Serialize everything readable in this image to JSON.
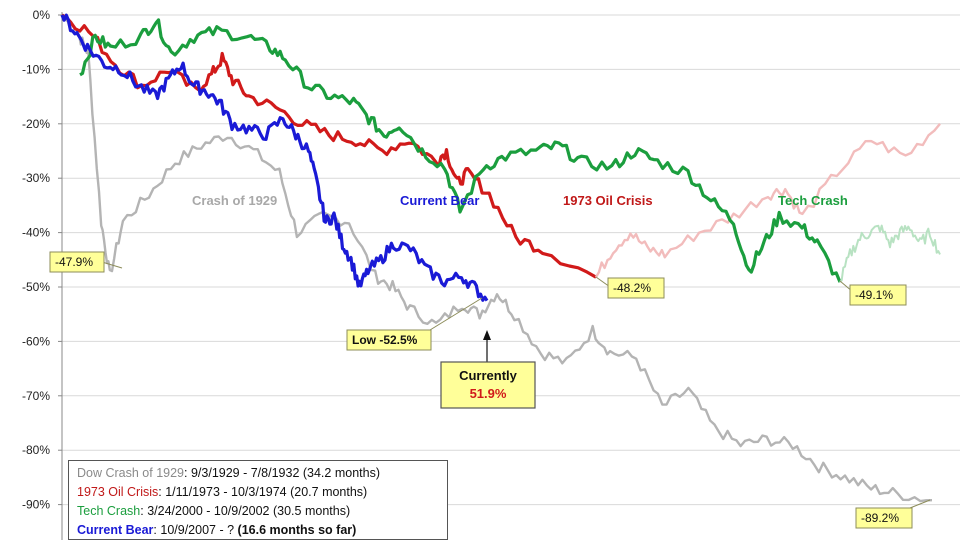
{
  "chart_data": {
    "type": "line",
    "title": "",
    "xlabel": "",
    "ylabel": "",
    "ylim": [
      -90,
      0
    ],
    "y_tick_labels": [
      "0%",
      "-10%",
      "-20%",
      "-30%",
      "-40%",
      "-50%",
      "-60%",
      "-70%",
      "-80%",
      "-90%"
    ],
    "grid": "horizontal",
    "series": [
      {
        "name": "Crash of 1929",
        "color": "#b4b4b4",
        "points": [
          [
            0,
            0
          ],
          [
            0.02,
            -4
          ],
          [
            0.03,
            -7
          ],
          [
            0.045,
            -38
          ],
          [
            0.055,
            -47.9
          ],
          [
            0.07,
            -38
          ],
          [
            0.1,
            -33
          ],
          [
            0.13,
            -27
          ],
          [
            0.16,
            -24
          ],
          [
            0.19,
            -22
          ],
          [
            0.22,
            -25
          ],
          [
            0.25,
            -29
          ],
          [
            0.27,
            -40
          ],
          [
            0.3,
            -37
          ],
          [
            0.33,
            -38
          ],
          [
            0.36,
            -48
          ],
          [
            0.38,
            -50
          ],
          [
            0.4,
            -54
          ],
          [
            0.43,
            -57
          ],
          [
            0.46,
            -53
          ],
          [
            0.48,
            -55
          ],
          [
            0.5,
            -51
          ],
          [
            0.52,
            -55
          ],
          [
            0.55,
            -62
          ],
          [
            0.58,
            -64
          ],
          [
            0.61,
            -58
          ],
          [
            0.63,
            -62
          ],
          [
            0.66,
            -63
          ],
          [
            0.69,
            -72
          ],
          [
            0.72,
            -69
          ],
          [
            0.75,
            -76
          ],
          [
            0.78,
            -79
          ],
          [
            0.81,
            -78
          ],
          [
            0.84,
            -79
          ],
          [
            0.87,
            -83
          ],
          [
            0.9,
            -85
          ],
          [
            0.93,
            -87
          ],
          [
            0.96,
            -88
          ],
          [
            1.0,
            -89.2
          ]
        ]
      },
      {
        "name": "1973 Oil Crisis",
        "color": "#d11a1a",
        "points": [
          [
            0,
            0
          ],
          [
            0.05,
            -3
          ],
          [
            0.1,
            -9
          ],
          [
            0.15,
            -13
          ],
          [
            0.2,
            -10
          ],
          [
            0.25,
            -14
          ],
          [
            0.28,
            -11
          ],
          [
            0.3,
            -8
          ],
          [
            0.32,
            -12
          ],
          [
            0.35,
            -15
          ],
          [
            0.4,
            -17
          ],
          [
            0.45,
            -20
          ],
          [
            0.5,
            -22
          ],
          [
            0.55,
            -23
          ],
          [
            0.6,
            -25
          ],
          [
            0.65,
            -23
          ],
          [
            0.7,
            -27
          ],
          [
            0.72,
            -25
          ],
          [
            0.74,
            -31
          ],
          [
            0.76,
            -29
          ],
          [
            0.8,
            -33
          ],
          [
            0.85,
            -41
          ],
          [
            0.9,
            -43
          ],
          [
            1.0,
            -48.2
          ]
        ]
      },
      {
        "name": "1973 Oil Crisis (continued)",
        "color": "#f2bcbc",
        "points": [
          [
            0,
            -48.2
          ],
          [
            0.05,
            -43
          ],
          [
            0.1,
            -40
          ],
          [
            0.15,
            -43
          ],
          [
            0.2,
            -44
          ],
          [
            0.3,
            -40
          ],
          [
            0.4,
            -37
          ],
          [
            0.5,
            -33
          ],
          [
            0.55,
            -32
          ],
          [
            0.6,
            -37
          ],
          [
            0.7,
            -29
          ],
          [
            0.8,
            -23
          ],
          [
            0.9,
            -26
          ],
          [
            1.0,
            -20
          ]
        ]
      },
      {
        "name": "Tech Crash",
        "color": "#1b9e3e",
        "points": [
          [
            0,
            -11
          ],
          [
            0.02,
            -4
          ],
          [
            0.04,
            -6
          ],
          [
            0.08,
            -4
          ],
          [
            0.1,
            -1
          ],
          [
            0.12,
            -7
          ],
          [
            0.15,
            -4
          ],
          [
            0.18,
            -3
          ],
          [
            0.22,
            -4
          ],
          [
            0.25,
            -6
          ],
          [
            0.27,
            -8
          ],
          [
            0.3,
            -13
          ],
          [
            0.33,
            -15
          ],
          [
            0.36,
            -16
          ],
          [
            0.38,
            -19
          ],
          [
            0.4,
            -22
          ],
          [
            0.42,
            -20
          ],
          [
            0.45,
            -25
          ],
          [
            0.48,
            -28
          ],
          [
            0.5,
            -36
          ],
          [
            0.53,
            -28
          ],
          [
            0.56,
            -26
          ],
          [
            0.6,
            -25
          ],
          [
            0.63,
            -24
          ],
          [
            0.66,
            -27
          ],
          [
            0.7,
            -28
          ],
          [
            0.73,
            -25
          ],
          [
            0.76,
            -27
          ],
          [
            0.8,
            -29
          ],
          [
            0.83,
            -34
          ],
          [
            0.86,
            -38
          ],
          [
            0.88,
            -47
          ],
          [
            0.9,
            -42
          ],
          [
            0.92,
            -37
          ],
          [
            0.95,
            -39
          ],
          [
            0.97,
            -42
          ],
          [
            1.0,
            -49.1
          ]
        ]
      },
      {
        "name": "Tech Crash (continued)",
        "color": "#b8e2c2",
        "points": [
          [
            0,
            -49.1
          ],
          [
            0.1,
            -44
          ],
          [
            0.2,
            -41
          ],
          [
            0.3,
            -40
          ],
          [
            0.4,
            -39
          ],
          [
            0.5,
            -42
          ],
          [
            0.6,
            -40
          ],
          [
            0.7,
            -39
          ],
          [
            0.8,
            -42
          ],
          [
            0.9,
            -40
          ],
          [
            1.0,
            -44
          ]
        ]
      },
      {
        "name": "Current Bear",
        "color": "#1a1ad6",
        "points": [
          [
            0,
            0
          ],
          [
            0.03,
            -3
          ],
          [
            0.06,
            -6
          ],
          [
            0.1,
            -9
          ],
          [
            0.14,
            -10
          ],
          [
            0.18,
            -13
          ],
          [
            0.22,
            -15
          ],
          [
            0.25,
            -12
          ],
          [
            0.28,
            -9
          ],
          [
            0.31,
            -13
          ],
          [
            0.34,
            -14
          ],
          [
            0.37,
            -16
          ],
          [
            0.4,
            -20
          ],
          [
            0.44,
            -21
          ],
          [
            0.48,
            -22
          ],
          [
            0.52,
            -19
          ],
          [
            0.55,
            -22
          ],
          [
            0.58,
            -25
          ],
          [
            0.6,
            -31
          ],
          [
            0.62,
            -38
          ],
          [
            0.64,
            -37
          ],
          [
            0.66,
            -42
          ],
          [
            0.68,
            -45
          ],
          [
            0.7,
            -50
          ],
          [
            0.72,
            -47
          ],
          [
            0.75,
            -45
          ],
          [
            0.78,
            -42
          ],
          [
            0.82,
            -43
          ],
          [
            0.86,
            -47
          ],
          [
            0.9,
            -49
          ],
          [
            0.94,
            -48
          ],
          [
            0.97,
            -50
          ],
          [
            1.0,
            -52.5
          ]
        ]
      }
    ],
    "annotations": {
      "series_labels": [
        "Crash of 1929",
        "Current Bear",
        "1973 Oil Crisis",
        "Tech Crash"
      ],
      "callouts": [
        "-47.9%",
        "Low -52.5%",
        "-48.2%",
        "-49.1%",
        "-89.2%"
      ],
      "currently": {
        "label": "Currently",
        "value": "51.9%"
      }
    },
    "legend": {
      "placement": "bottom-left",
      "entries": [
        {
          "name": "Dow Crash of 1929",
          "sep": ": ",
          "range": "9/3/1929  - 7/8/1932  (34.2 months)",
          "color": "#8a8a8a"
        },
        {
          "name": "1973 Oil Crisis",
          "sep": ": ",
          "range": "1/11/1973 - 10/3/1974  (20.7 months)",
          "color": "#c01818"
        },
        {
          "name": "Tech Crash",
          "sep": ":  ",
          "range": "3/24/2000 - 10/9/2002  (30.5 months)",
          "color": "#1b9e3e"
        },
        {
          "name": "Current Bear",
          "sep": ": ",
          "range": "10/9/2007  - ?  ",
          "extra": "(16.6 months so far)",
          "color": "#1a1ad6"
        }
      ]
    }
  }
}
